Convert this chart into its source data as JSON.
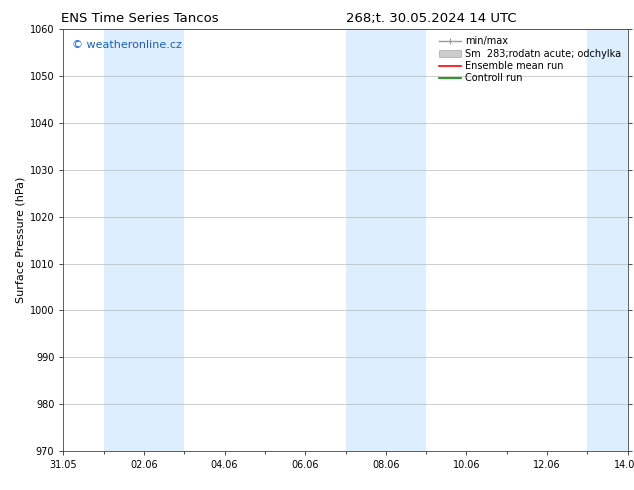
{
  "title_left": "ENS Time Series Tancos",
  "title_right": "268;t. 30.05.2024 14 UTC",
  "ylabel": "Surface Pressure (hPa)",
  "ylim": [
    970,
    1060
  ],
  "yticks": [
    970,
    980,
    990,
    1000,
    1010,
    1020,
    1030,
    1040,
    1050,
    1060
  ],
  "xtick_labels": [
    "31.05",
    "02.06",
    "04.06",
    "06.06",
    "08.06",
    "10.06",
    "12.06",
    "14.06"
  ],
  "xtick_positions": [
    0,
    2,
    4,
    6,
    8,
    10,
    12,
    14
  ],
  "x_total_days": 14,
  "shaded_bands": [
    {
      "x_start": 1,
      "x_end": 3,
      "color": "#ddeeff"
    },
    {
      "x_start": 7,
      "x_end": 9,
      "color": "#ddeeff"
    },
    {
      "x_start": 13,
      "x_end": 14,
      "color": "#ddeeff"
    }
  ],
  "watermark_text": "© weatheronline.cz",
  "watermark_color": "#1a5fb5",
  "legend_labels": [
    "min/max",
    "Sm  283;rodatn acute; odchylka",
    "Ensemble mean run",
    "Controll run"
  ],
  "legend_colors_line": [
    "#999999",
    "#bbbbbb",
    "#ff0000",
    "#008800"
  ],
  "background_color": "#ffffff",
  "plot_bg_color": "#ffffff",
  "grid_color": "#bbbbbb",
  "title_fontsize": 9.5,
  "ylabel_fontsize": 8,
  "tick_fontsize": 7,
  "legend_fontsize": 7,
  "watermark_fontsize": 8
}
